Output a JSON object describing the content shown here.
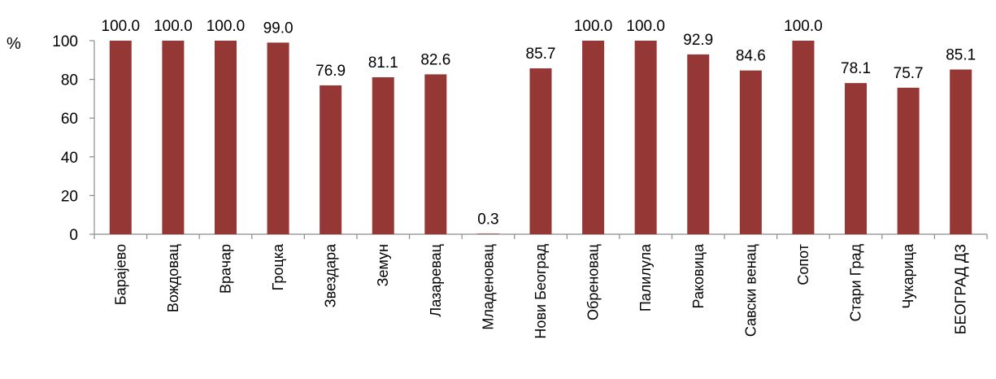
{
  "chart_data": {
    "type": "bar",
    "unit_label": "%",
    "categories": [
      "Барајево",
      "Вождовац",
      "Врачар",
      "Гроцка",
      "Звездара",
      "Земун",
      "Лазаревац",
      "Младеновац",
      "Нови Београд",
      "Обреновац",
      "Палилула",
      "Раковица",
      "Савски венац",
      "Сопот",
      "Стари Град",
      "Чукарица",
      "БЕОГРАД ДЗ"
    ],
    "values": [
      100.0,
      100.0,
      100.0,
      99.0,
      76.9,
      81.1,
      82.6,
      0.3,
      85.7,
      100.0,
      100.0,
      92.9,
      84.6,
      100.0,
      78.1,
      75.7,
      85.1
    ],
    "value_labels": [
      "100.0",
      "100.0",
      "100.0",
      "99.0",
      "76.9",
      "81.1",
      "82.6",
      "0.3",
      "85.7",
      "100.0",
      "100.0",
      "92.9",
      "84.6",
      "100.0",
      "78.1",
      "75.7",
      "85.1"
    ],
    "ylim": [
      0,
      100
    ],
    "yticks": [
      "0",
      "20",
      "40",
      "60",
      "80",
      "100"
    ],
    "bar_color": "#953735",
    "grid": false,
    "legend": "none"
  }
}
